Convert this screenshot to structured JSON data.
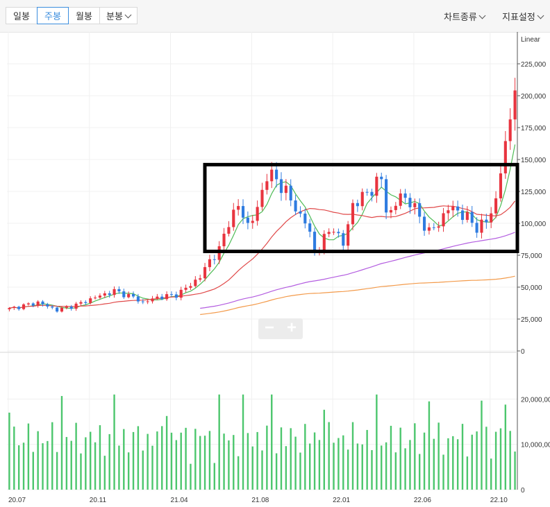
{
  "tabs": [
    {
      "label": "일봉",
      "active": false
    },
    {
      "label": "주봉",
      "active": true
    },
    {
      "label": "월봉",
      "active": false
    },
    {
      "label": "분봉",
      "active": false,
      "dropdown": true
    }
  ],
  "menus": {
    "chart_type": "차트종류",
    "indicator_settings": "지표설정"
  },
  "zoom": {
    "minus": "−",
    "plus": "+"
  },
  "chart_data": {
    "type": "candlestick",
    "scale": "Linear",
    "price_axis": {
      "ylim": [
        0,
        250000
      ],
      "ticks": [
        "225,000",
        "200,000",
        "175,000",
        "150,000",
        "125,000",
        "100,000",
        "75,000",
        "50,000",
        "25,000",
        "0"
      ]
    },
    "volume_axis": {
      "ylim": [
        0,
        30000000
      ],
      "ticks": [
        "20,000,00",
        "10,000,00",
        "0"
      ]
    },
    "x_ticks": [
      "20.07",
      "20.11",
      "21.04",
      "21.08",
      "22.01",
      "22.06",
      "22.10"
    ],
    "up_color": "#e8343f",
    "down_color": "#2f7ce0",
    "volume_color": "#4cc66d",
    "ma_colors": [
      "#4dbb55",
      "#e04848",
      "#b35ce0",
      "#f39a4a"
    ],
    "highlight_box": {
      "price_range": [
        78000,
        146000
      ],
      "color": "#000000"
    },
    "anchor_closes": [
      [
        0,
        33000
      ],
      [
        6,
        38000
      ],
      [
        10,
        32000
      ],
      [
        14,
        36000
      ],
      [
        18,
        42000
      ],
      [
        22,
        47000
      ],
      [
        26,
        42000
      ],
      [
        28,
        38000
      ],
      [
        31,
        42000
      ],
      [
        35,
        44000
      ],
      [
        37,
        49000
      ],
      [
        40,
        58000
      ],
      [
        42,
        71000
      ],
      [
        44,
        79000
      ],
      [
        46,
        102000
      ],
      [
        48,
        113000
      ],
      [
        50,
        99000
      ],
      [
        52,
        110000
      ],
      [
        54,
        140000
      ],
      [
        56,
        133000
      ],
      [
        58,
        126000
      ],
      [
        60,
        110000
      ],
      [
        62,
        103000
      ],
      [
        64,
        78000
      ],
      [
        66,
        88000
      ],
      [
        68,
        97000
      ],
      [
        70,
        83000
      ],
      [
        72,
        115000
      ],
      [
        74,
        120000
      ],
      [
        76,
        128000
      ],
      [
        78,
        134000
      ],
      [
        79,
        112000
      ],
      [
        80,
        108000
      ],
      [
        82,
        122000
      ],
      [
        84,
        117000
      ],
      [
        86,
        105000
      ],
      [
        88,
        93000
      ],
      [
        90,
        100000
      ],
      [
        92,
        112000
      ],
      [
        94,
        110000
      ],
      [
        96,
        104000
      ],
      [
        98,
        97000
      ],
      [
        100,
        101000
      ],
      [
        102,
        118000
      ],
      [
        103,
        142000
      ],
      [
        104,
        160000
      ],
      [
        105,
        182000
      ],
      [
        106,
        213000
      ]
    ],
    "ma_periods": [
      5,
      20,
      60,
      120
    ]
  }
}
